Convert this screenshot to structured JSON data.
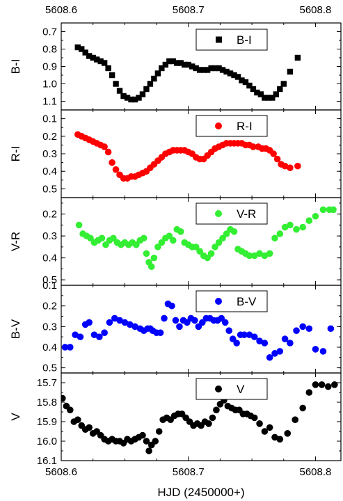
{
  "chart_data": {
    "type": "scatter",
    "xlabel": "HJD (2450000+)",
    "x_ticks": [
      5608.6,
      5608.7,
      5608.8
    ],
    "x_tick_labels": [
      "5608.6",
      "5608.7",
      "5608.8"
    ],
    "xlim": [
      5608.6,
      5608.82
    ],
    "panels": [
      {
        "ylabel": "B-I",
        "legend": "B-I",
        "marker": "square",
        "color": "#000000",
        "ylim": [
          0.65,
          1.15
        ],
        "y_ticks": [
          0.7,
          0.8,
          0.9,
          1.0,
          1.1
        ],
        "y_tick_labels": [
          "0.7",
          "0.8",
          "0.9",
          "1.0",
          "1.1"
        ],
        "x": [
          5608.613,
          5608.616,
          5608.619,
          5608.622,
          5608.625,
          5608.628,
          5608.631,
          5608.634,
          5608.637,
          5608.64,
          5608.643,
          5608.646,
          5608.649,
          5608.652,
          5608.655,
          5608.658,
          5608.661,
          5608.664,
          5608.667,
          5608.67,
          5608.673,
          5608.676,
          5608.679,
          5608.682,
          5608.685,
          5608.688,
          5608.691,
          5608.694,
          5608.697,
          5608.7,
          5608.703,
          5608.706,
          5608.709,
          5608.712,
          5608.715,
          5608.718,
          5608.721,
          5608.724,
          5608.727,
          5608.73,
          5608.733,
          5608.736,
          5608.739,
          5608.742,
          5608.745,
          5608.748,
          5608.751,
          5608.754,
          5608.757,
          5608.76,
          5608.763,
          5608.766,
          5608.769,
          5608.772,
          5608.775,
          5608.78,
          5608.786
        ],
        "y": [
          0.79,
          0.8,
          0.82,
          0.84,
          0.85,
          0.86,
          0.87,
          0.88,
          0.91,
          0.95,
          1.0,
          1.04,
          1.07,
          1.08,
          1.09,
          1.09,
          1.08,
          1.06,
          1.03,
          1.0,
          0.97,
          0.94,
          0.91,
          0.89,
          0.87,
          0.87,
          0.88,
          0.88,
          0.89,
          0.89,
          0.9,
          0.91,
          0.92,
          0.92,
          0.92,
          0.91,
          0.91,
          0.91,
          0.92,
          0.93,
          0.94,
          0.95,
          0.96,
          0.98,
          0.99,
          1.01,
          1.03,
          1.05,
          1.06,
          1.08,
          1.08,
          1.08,
          1.06,
          1.03,
          1.0,
          0.93,
          0.85
        ]
      },
      {
        "ylabel": "R-I",
        "legend": "R-I",
        "marker": "circle",
        "color": "#ff0000",
        "ylim": [
          0.05,
          0.55
        ],
        "y_ticks": [
          0.1,
          0.2,
          0.3,
          0.4,
          0.5
        ],
        "y_tick_labels": [
          "0.1",
          "0.2",
          "0.3",
          "0.4",
          "0.5"
        ],
        "x": [
          5608.613,
          5608.616,
          5608.619,
          5608.622,
          5608.625,
          5608.628,
          5608.631,
          5608.634,
          5608.637,
          5608.64,
          5608.643,
          5608.646,
          5608.649,
          5608.652,
          5608.655,
          5608.658,
          5608.661,
          5608.664,
          5608.667,
          5608.67,
          5608.673,
          5608.676,
          5608.679,
          5608.682,
          5608.685,
          5608.688,
          5608.691,
          5608.694,
          5608.697,
          5608.7,
          5608.703,
          5608.706,
          5608.709,
          5608.712,
          5608.715,
          5608.718,
          5608.721,
          5608.724,
          5608.727,
          5608.73,
          5608.733,
          5608.736,
          5608.739,
          5608.742,
          5608.745,
          5608.748,
          5608.751,
          5608.755,
          5608.758,
          5608.761,
          5608.764,
          5608.767,
          5608.77,
          5608.773,
          5608.776,
          5608.78,
          5608.786
        ],
        "y": [
          0.19,
          0.2,
          0.21,
          0.22,
          0.23,
          0.24,
          0.25,
          0.26,
          0.29,
          0.35,
          0.39,
          0.42,
          0.44,
          0.44,
          0.43,
          0.43,
          0.42,
          0.41,
          0.4,
          0.38,
          0.36,
          0.34,
          0.32,
          0.3,
          0.29,
          0.28,
          0.28,
          0.28,
          0.28,
          0.29,
          0.3,
          0.32,
          0.33,
          0.33,
          0.31,
          0.29,
          0.27,
          0.26,
          0.25,
          0.24,
          0.24,
          0.24,
          0.24,
          0.24,
          0.25,
          0.25,
          0.26,
          0.26,
          0.27,
          0.27,
          0.28,
          0.3,
          0.33,
          0.36,
          0.37,
          0.38,
          0.37
        ]
      },
      {
        "ylabel": "V-R",
        "legend": "V-R",
        "marker": "circle",
        "color": "#33ee33",
        "ylim": [
          0.125,
          0.525
        ],
        "y_ticks": [
          0.2,
          0.3,
          0.4,
          0.5
        ],
        "y_tick_labels": [
          "0.2",
          "0.3",
          "0.4",
          "0.5"
        ],
        "x": [
          5608.614,
          5608.617,
          5608.62,
          5608.623,
          5608.626,
          5608.629,
          5608.632,
          5608.635,
          5608.638,
          5608.641,
          5608.644,
          5608.647,
          5608.65,
          5608.653,
          5608.656,
          5608.659,
          5608.662,
          5608.665,
          5608.667,
          5608.669,
          5608.671,
          5608.673,
          5608.676,
          5608.679,
          5608.682,
          5608.685,
          5608.688,
          5608.691,
          5608.694,
          5608.697,
          5608.7,
          5608.703,
          5608.706,
          5608.709,
          5608.712,
          5608.715,
          5608.718,
          5608.721,
          5608.724,
          5608.727,
          5608.73,
          5608.733,
          5608.736,
          5608.739,
          5608.742,
          5608.745,
          5608.748,
          5608.752,
          5608.756,
          5608.76,
          5608.764,
          5608.768,
          5608.772,
          5608.776,
          5608.78,
          5608.785,
          5608.79,
          5608.795,
          5608.8,
          5608.806,
          5608.811,
          5608.814
        ],
        "y": [
          0.25,
          0.29,
          0.3,
          0.31,
          0.33,
          0.32,
          0.31,
          0.34,
          0.32,
          0.31,
          0.33,
          0.34,
          0.33,
          0.34,
          0.33,
          0.34,
          0.32,
          0.31,
          0.38,
          0.42,
          0.44,
          0.4,
          0.35,
          0.33,
          0.31,
          0.3,
          0.32,
          0.27,
          0.28,
          0.33,
          0.34,
          0.35,
          0.35,
          0.37,
          0.39,
          0.4,
          0.38,
          0.35,
          0.33,
          0.31,
          0.29,
          0.27,
          0.28,
          0.36,
          0.37,
          0.38,
          0.39,
          0.39,
          0.38,
          0.39,
          0.38,
          0.31,
          0.29,
          0.26,
          0.25,
          0.27,
          0.26,
          0.23,
          0.21,
          0.18,
          0.18,
          0.18
        ]
      },
      {
        "ylabel": "B-V",
        "legend": "B-V",
        "marker": "circle",
        "color": "#0000ff",
        "ylim": [
          0.1,
          0.525
        ],
        "y_ticks": [
          0.1,
          0.2,
          0.3,
          0.4,
          0.5
        ],
        "y_tick_labels": [
          "0.1",
          "0.2",
          "0.3",
          "0.4",
          "0.5"
        ],
        "x": [
          5608.603,
          5608.607,
          5608.611,
          5608.615,
          5608.619,
          5608.622,
          5608.626,
          5608.63,
          5608.634,
          5608.638,
          5608.642,
          5608.646,
          5608.65,
          5608.654,
          5608.658,
          5608.662,
          5608.665,
          5608.668,
          5608.67,
          5608.672,
          5608.675,
          5608.678,
          5608.681,
          5608.684,
          5608.687,
          5608.69,
          5608.693,
          5608.696,
          5608.699,
          5608.702,
          5608.705,
          5608.708,
          5608.711,
          5608.714,
          5608.717,
          5608.72,
          5608.723,
          5608.726,
          5608.729,
          5608.732,
          5608.735,
          5608.738,
          5608.741,
          5608.744,
          5608.748,
          5608.752,
          5608.756,
          5608.76,
          5608.764,
          5608.768,
          5608.772,
          5608.776,
          5608.78,
          5608.785,
          5608.79,
          5608.795,
          5608.8,
          5608.806,
          5608.812
        ],
        "y": [
          0.4,
          0.4,
          0.34,
          0.35,
          0.29,
          0.28,
          0.34,
          0.35,
          0.33,
          0.28,
          0.26,
          0.27,
          0.28,
          0.29,
          0.3,
          0.31,
          0.32,
          0.31,
          0.31,
          0.32,
          0.33,
          0.33,
          0.26,
          0.19,
          0.2,
          0.27,
          0.3,
          0.27,
          0.28,
          0.26,
          0.27,
          0.3,
          0.28,
          0.26,
          0.26,
          0.27,
          0.27,
          0.26,
          0.28,
          0.32,
          0.36,
          0.38,
          0.34,
          0.34,
          0.34,
          0.35,
          0.37,
          0.38,
          0.45,
          0.43,
          0.42,
          0.36,
          0.38,
          0.32,
          0.3,
          0.31,
          0.41,
          0.42,
          0.31
        ]
      },
      {
        "ylabel": "V",
        "legend": "V",
        "marker": "circle",
        "color": "#000000",
        "ylim": [
          15.65,
          16.1
        ],
        "y_ticks": [
          15.7,
          15.8,
          15.9,
          16.0,
          16.1
        ],
        "y_tick_labels": [
          "15.7",
          "15.8",
          "15.9",
          "16.0",
          "16.1"
        ],
        "x": [
          5608.601,
          5608.604,
          5608.607,
          5608.61,
          5608.613,
          5608.616,
          5608.619,
          5608.622,
          5608.625,
          5608.628,
          5608.631,
          5608.634,
          5608.637,
          5608.64,
          5608.643,
          5608.646,
          5608.649,
          5608.652,
          5608.655,
          5608.658,
          5608.661,
          5608.664,
          5608.667,
          5608.669,
          5608.671,
          5608.674,
          5608.677,
          5608.68,
          5608.683,
          5608.686,
          5608.689,
          5608.692,
          5608.695,
          5608.698,
          5608.701,
          5608.704,
          5608.707,
          5608.71,
          5608.713,
          5608.716,
          5608.719,
          5608.722,
          5608.725,
          5608.728,
          5608.731,
          5608.734,
          5608.737,
          5608.74,
          5608.743,
          5608.746,
          5608.749,
          5608.752,
          5608.756,
          5608.76,
          5608.764,
          5608.768,
          5608.772,
          5608.778,
          5608.784,
          5608.79,
          5608.795,
          5608.8,
          5608.805,
          5608.81,
          5608.815
        ],
        "y": [
          15.78,
          15.82,
          15.84,
          15.9,
          15.89,
          15.92,
          15.94,
          15.93,
          15.96,
          15.95,
          15.97,
          15.99,
          16.0,
          15.99,
          16.0,
          16.0,
          16.01,
          15.99,
          16.0,
          15.99,
          15.98,
          15.97,
          16.0,
          16.05,
          16.02,
          16.0,
          15.95,
          15.89,
          15.88,
          15.89,
          15.87,
          15.86,
          15.86,
          15.88,
          15.9,
          15.92,
          15.91,
          15.92,
          15.9,
          15.91,
          15.88,
          15.84,
          15.81,
          15.79,
          15.82,
          15.83,
          15.84,
          15.84,
          15.86,
          15.86,
          15.87,
          15.88,
          15.91,
          15.95,
          15.93,
          15.98,
          15.99,
          15.96,
          15.89,
          15.83,
          15.75,
          15.71,
          15.71,
          15.72,
          15.71
        ]
      }
    ]
  }
}
